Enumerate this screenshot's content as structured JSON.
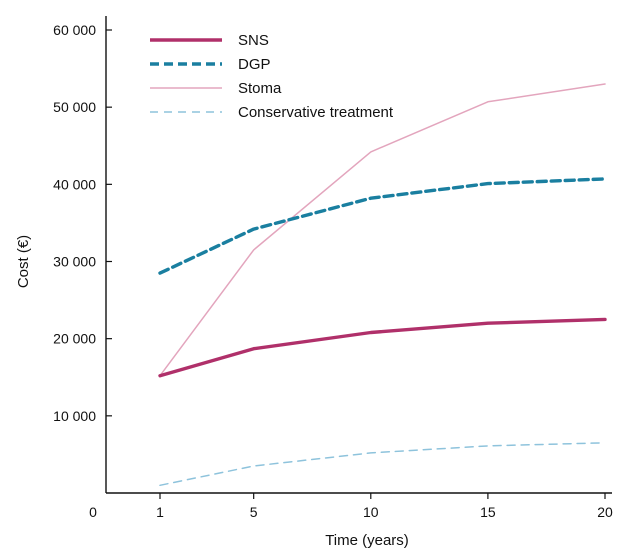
{
  "chart_data": {
    "type": "line",
    "xlabel": "Time (years)",
    "ylabel": "Cost (€)",
    "xlim": [
      0,
      20
    ],
    "ylim": [
      0,
      60000
    ],
    "x_ticks": [
      0,
      1,
      5,
      10,
      15,
      20
    ],
    "x_tick_labels": [
      "0",
      "1",
      "5",
      "10",
      "15",
      "20"
    ],
    "y_ticks": [
      10000,
      20000,
      30000,
      40000,
      50000,
      60000
    ],
    "y_tick_labels": [
      "10 000",
      "20 000",
      "30 000",
      "40 000",
      "50 000",
      "60 000"
    ],
    "grid": false,
    "legend_position": "top-left",
    "series": [
      {
        "name": "SNS",
        "color": "#b0306a",
        "style": "solid-thick",
        "x": [
          1,
          5,
          10,
          15,
          20
        ],
        "y": [
          15200,
          18700,
          20800,
          22000,
          22500
        ]
      },
      {
        "name": "DGP",
        "color": "#1a7fa0",
        "style": "dashed-thick",
        "x": [
          1,
          5,
          10,
          15,
          20
        ],
        "y": [
          28500,
          34200,
          38200,
          40100,
          40700
        ]
      },
      {
        "name": "Stoma",
        "color": "#e3a5bd",
        "style": "solid-thin",
        "x": [
          1,
          5,
          10,
          15,
          20
        ],
        "y": [
          15200,
          31500,
          44200,
          50700,
          53000
        ]
      },
      {
        "name": "Conservative treatment",
        "color": "#8ec3dc",
        "style": "dashed-thin",
        "x": [
          1,
          5,
          10,
          15,
          20
        ],
        "y": [
          1000,
          3500,
          5200,
          6100,
          6500
        ]
      }
    ]
  }
}
